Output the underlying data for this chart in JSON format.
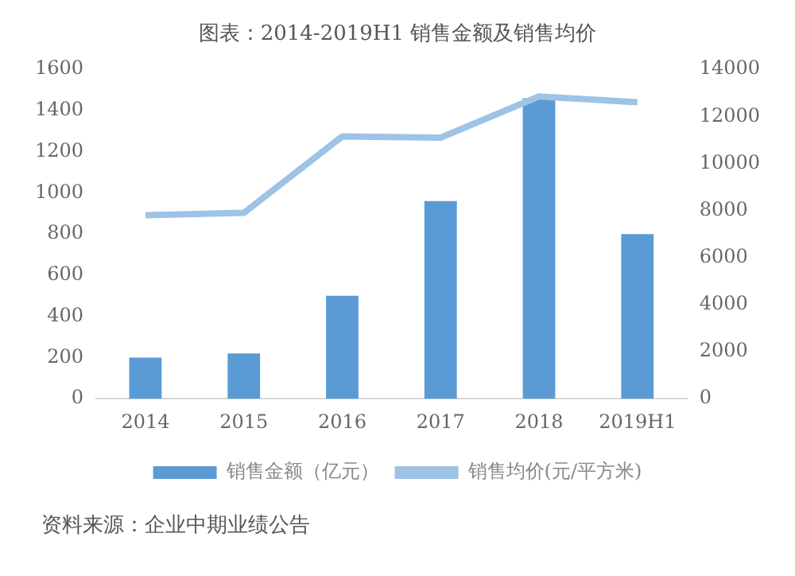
{
  "chart_data": {
    "type": "bar",
    "title": "图表：2014-2019H1 销售金额及销售均价",
    "categories": [
      "2014",
      "2015",
      "2016",
      "2017",
      "2018",
      "2019H1"
    ],
    "series": [
      {
        "name": "销售金额（亿元）",
        "color": "#5b9bd5",
        "values": [
          200,
          220,
          500,
          960,
          1460,
          800
        ]
      },
      {
        "name": "销售均价(元/平方米)",
        "type": "line",
        "axis": "y2",
        "color": "#9dc3e6",
        "values": [
          7800,
          7900,
          11150,
          11100,
          12850,
          12600
        ]
      }
    ],
    "ylim": [
      0,
      1600
    ],
    "yticks": [
      0,
      200,
      400,
      600,
      800,
      1000,
      1200,
      1400,
      1600
    ],
    "y2lim": [
      0,
      14000
    ],
    "y2ticks": [
      0,
      2000,
      4000,
      6000,
      8000,
      10000,
      12000,
      14000
    ],
    "grid": false,
    "legend": "bottom",
    "marker": "none",
    "annotations": [
      "资料来源：企业中期业绩公告"
    ]
  }
}
